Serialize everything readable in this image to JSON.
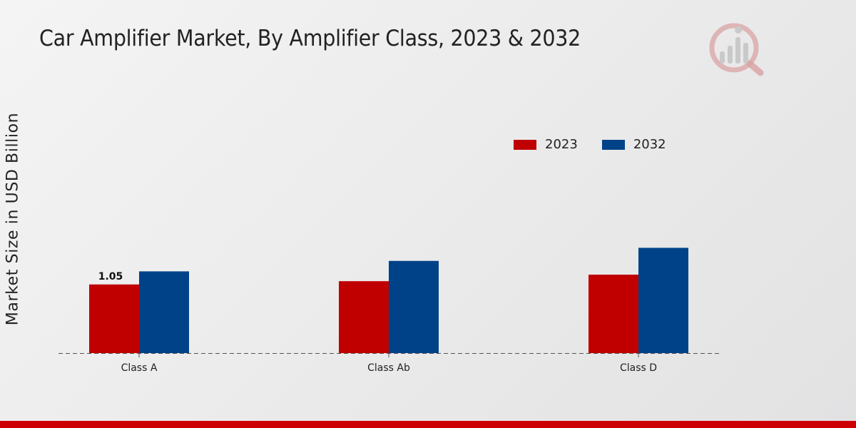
{
  "title": "Car Amplifier Market, By Amplifier Class, 2023 & 2032",
  "colors": {
    "series_2023": "#c00000",
    "series_2032": "#004288",
    "bottom_bar": "#cc0000",
    "logo": "#d08a8a"
  },
  "logo_icon": "market-research-logo-icon",
  "chart_data": {
    "type": "bar",
    "title": "Car Amplifier Market, By Amplifier Class, 2023 & 2032",
    "xlabel": "",
    "ylabel": "Market Size in USD Billion",
    "categories": [
      "Class A",
      "Class Ab",
      "Class D"
    ],
    "series": [
      {
        "name": "2023",
        "values": [
          1.05,
          1.1,
          1.2
        ]
      },
      {
        "name": "2032",
        "values": [
          1.25,
          1.41,
          1.61
        ]
      }
    ],
    "data_labels": [
      {
        "series": "2023",
        "category": "Class A",
        "text": "1.05"
      }
    ],
    "ylim": [
      0,
      5.4
    ],
    "grid": false,
    "baseline": "dashed",
    "legend_position": "top-right"
  }
}
